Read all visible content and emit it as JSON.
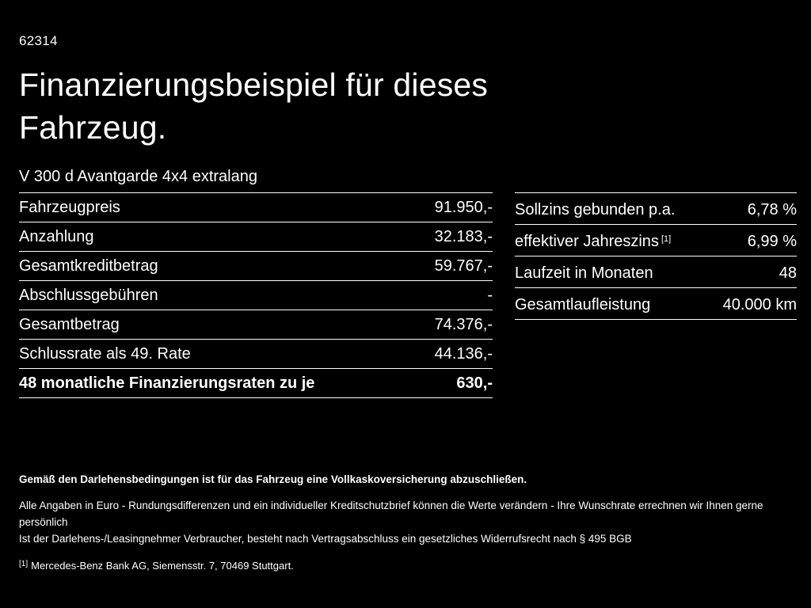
{
  "page": {
    "code": "62314",
    "title_line1": "Finanzierungsbeispiel für dieses",
    "title_line2": "Fahrzeug.",
    "subtitle": "V 300 d Avantgarde 4x4 extralang"
  },
  "left_table": {
    "rows": [
      {
        "label": "Fahrzeugpreis",
        "value": "91.950,-"
      },
      {
        "label": "Anzahlung",
        "value": "32.183,-"
      },
      {
        "label": "Gesamtkreditbetrag",
        "value": "59.767,-"
      },
      {
        "label": "Abschlussgebühren",
        "value": "-"
      },
      {
        "label": "Gesamtbetrag",
        "value": "74.376,-"
      },
      {
        "label": "Schlussrate als 49. Rate",
        "value": "44.136,-"
      },
      {
        "label": "48 monatliche Finanzierungsraten zu je",
        "value": "630,-"
      }
    ]
  },
  "right_table": {
    "rows": [
      {
        "label": "Sollzins gebunden p.a.",
        "sup": "",
        "value": "6,78 %"
      },
      {
        "label": "effektiver Jahreszins",
        "sup": "[1]",
        "value": "6,99 %"
      },
      {
        "label": "Laufzeit in Monaten",
        "sup": "",
        "value": "48"
      },
      {
        "label": "Gesamtlaufleistung",
        "sup": "",
        "value": "40.000 km"
      }
    ]
  },
  "footer": {
    "bold_note": "Gemäß den Darlehensbedingungen ist für das Fahrzeug eine Vollkaskoversicherung abzuschließen.",
    "note1": "Alle Angaben in Euro - Rundungsdifferenzen und ein individueller Kreditschutzbrief können die Werte verändern - Ihre Wunschrate errechnen wir Ihnen gerne persönlich",
    "note2": "Ist der Darlehens-/Leasingnehmer Verbraucher, besteht nach Vertragsabschluss ein gesetzliches Widerrufsrecht nach § 495 BGB",
    "footnote_marker": "[1]",
    "footnote": "Mercedes-Benz Bank AG, Siemensstr. 7, 70469 Stuttgart."
  },
  "colors": {
    "background": "#000000",
    "text": "#ffffff",
    "divider": "#ffffff"
  }
}
